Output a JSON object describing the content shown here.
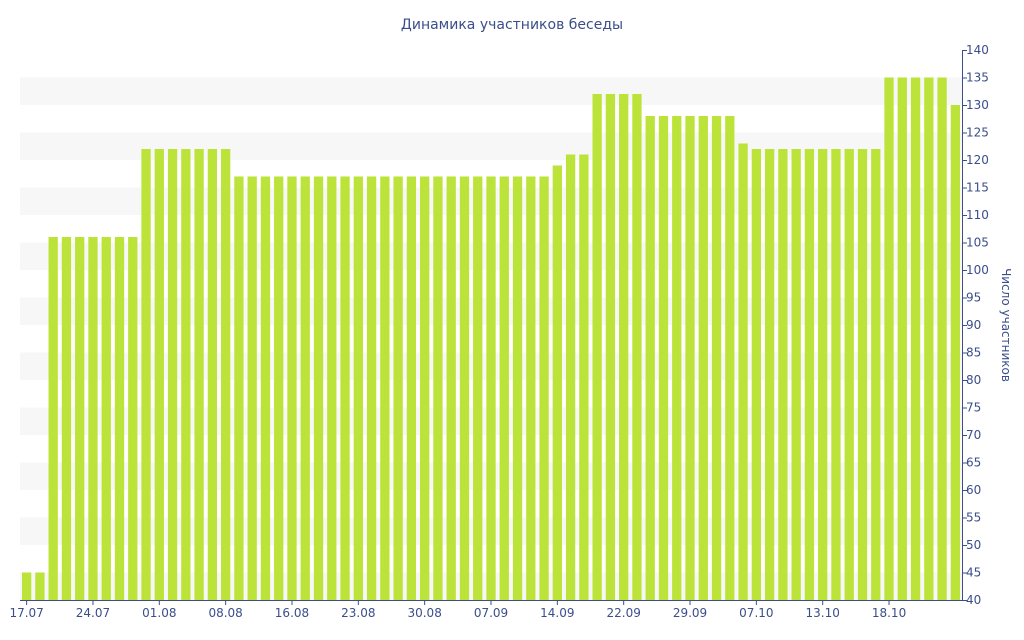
{
  "chart_data": {
    "type": "bar",
    "title": "Динамика участников беседы",
    "xlabel": "",
    "ylabel": "Число участников",
    "ylim": [
      40,
      140
    ],
    "y_ticks": [
      40,
      45,
      50,
      55,
      60,
      65,
      70,
      75,
      80,
      85,
      90,
      95,
      100,
      105,
      110,
      115,
      120,
      125,
      130,
      135,
      140
    ],
    "x_tick_labels": [
      {
        "index": 0,
        "label": "17.07"
      },
      {
        "index": 5,
        "label": "24.07"
      },
      {
        "index": 10,
        "label": "01.08"
      },
      {
        "index": 15,
        "label": "08.08"
      },
      {
        "index": 20,
        "label": "16.08"
      },
      {
        "index": 25,
        "label": "23.08"
      },
      {
        "index": 30,
        "label": "30.08"
      },
      {
        "index": 35,
        "label": "07.09"
      },
      {
        "index": 40,
        "label": "14.09"
      },
      {
        "index": 45,
        "label": "22.09"
      },
      {
        "index": 50,
        "label": "29.09"
      },
      {
        "index": 55,
        "label": "07.10"
      },
      {
        "index": 60,
        "label": "13.10"
      },
      {
        "index": 65,
        "label": "18.10"
      }
    ],
    "values": [
      45,
      45,
      106,
      106,
      106,
      106,
      106,
      106,
      106,
      122,
      122,
      122,
      122,
      122,
      122,
      122,
      117,
      117,
      117,
      117,
      117,
      117,
      117,
      117,
      117,
      117,
      117,
      117,
      117,
      117,
      117,
      117,
      117,
      117,
      117,
      117,
      117,
      117,
      117,
      117,
      119,
      121,
      121,
      132,
      132,
      132,
      132,
      128,
      128,
      128,
      128,
      128,
      128,
      128,
      123,
      122,
      122,
      122,
      122,
      122,
      122,
      122,
      122,
      122,
      122,
      135,
      135,
      135,
      135,
      135,
      130
    ],
    "bar_color": "#bbe33a",
    "band_color": "#f7f7f7",
    "text_color": "#3b4e8a",
    "grid": true,
    "y_axis_side": "right"
  }
}
